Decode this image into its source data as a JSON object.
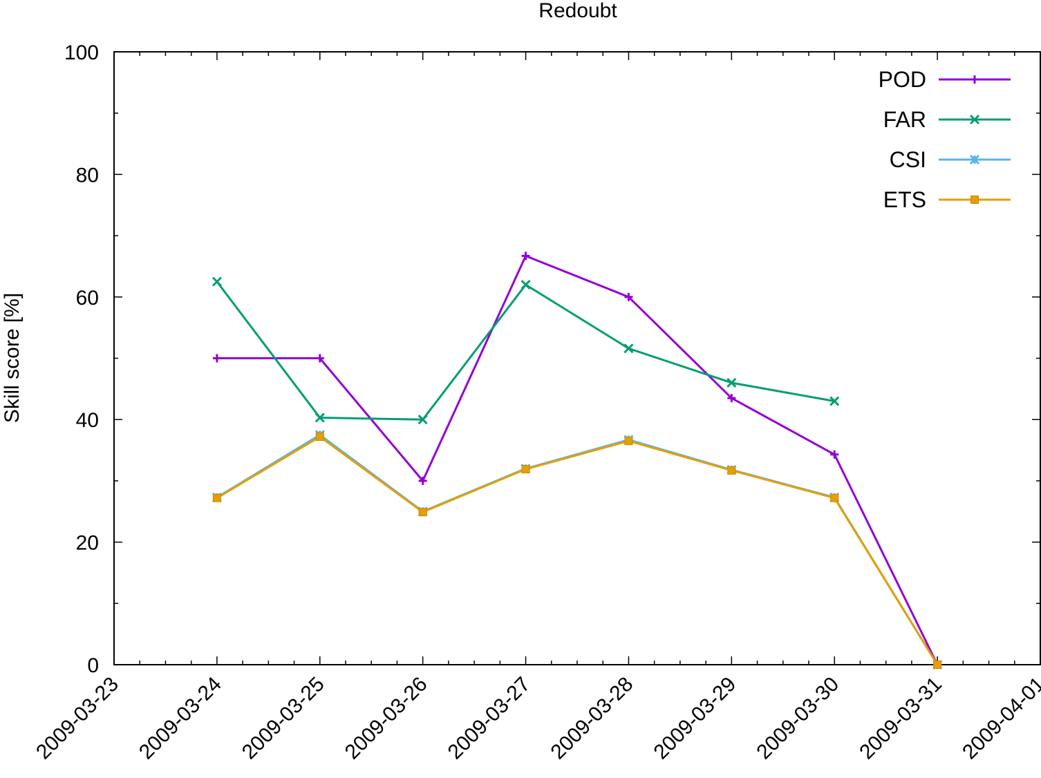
{
  "chart_data": {
    "type": "line",
    "title": "Redoubt",
    "xlabel": "",
    "ylabel": "Skill score [%]",
    "x_tick_labels": [
      "2009-03-23",
      "2009-03-24",
      "2009-03-25",
      "2009-03-26",
      "2009-03-27",
      "2009-03-28",
      "2009-03-29",
      "2009-03-30",
      "2009-03-31",
      "2009-04-01"
    ],
    "y_tick_labels": [
      "0",
      "20",
      "40",
      "60",
      "80",
      "100"
    ],
    "xlim": [
      "2009-03-23",
      "2009-04-01"
    ],
    "ylim": [
      0,
      100
    ],
    "legend_position": "top-right",
    "grid": false,
    "series": [
      {
        "name": "POD",
        "color": "#9400d3",
        "marker": "plus",
        "x": [
          "2009-03-24",
          "2009-03-25",
          "2009-03-26",
          "2009-03-27",
          "2009-03-28",
          "2009-03-29",
          "2009-03-30",
          "2009-03-31"
        ],
        "values": [
          50,
          50,
          30,
          66.7,
          60,
          43.5,
          34.3,
          0
        ]
      },
      {
        "name": "FAR",
        "color": "#009e73",
        "marker": "cross",
        "x": [
          "2009-03-24",
          "2009-03-25",
          "2009-03-26",
          "2009-03-27",
          "2009-03-28",
          "2009-03-29",
          "2009-03-30"
        ],
        "values": [
          62.5,
          40.3,
          40,
          62,
          51.6,
          46,
          43
        ]
      },
      {
        "name": "CSI",
        "color": "#56b4e9",
        "marker": "star",
        "x": [
          "2009-03-24",
          "2009-03-25",
          "2009-03-26",
          "2009-03-27",
          "2009-03-28",
          "2009-03-29",
          "2009-03-30",
          "2009-03-31"
        ],
        "values": [
          27.3,
          37.5,
          25,
          32,
          36.7,
          31.8,
          27.3,
          0
        ]
      },
      {
        "name": "ETS",
        "color": "#e69f00",
        "marker": "box",
        "x": [
          "2009-03-24",
          "2009-03-25",
          "2009-03-26",
          "2009-03-27",
          "2009-03-28",
          "2009-03-29",
          "2009-03-30",
          "2009-03-31"
        ],
        "values": [
          27.2,
          37.2,
          24.9,
          31.9,
          36.5,
          31.7,
          27.2,
          0
        ]
      }
    ]
  }
}
